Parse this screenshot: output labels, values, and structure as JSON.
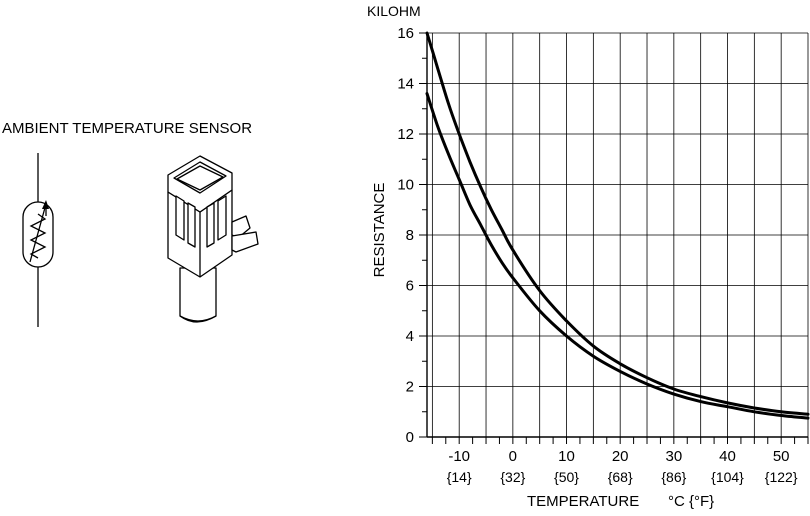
{
  "sensor": {
    "title": "AMBIENT TEMPERATURE SENSOR",
    "symbol_icon": "thermistor-symbol-icon",
    "part_icon": "sensor-part-icon"
  },
  "chart_data": {
    "type": "line",
    "y_unit": "KILOHM",
    "ylabel": "RESISTANCE",
    "xlabel": "TEMPERATURE",
    "x_unit": "°C {°F}",
    "xlim": [
      -16,
      55
    ],
    "ylim": [
      0,
      16
    ],
    "x_ticks": [
      {
        "value": -10,
        "label": "-10",
        "sub": "{14}"
      },
      {
        "value": 0,
        "label": "0",
        "sub": "{32}"
      },
      {
        "value": 10,
        "label": "10",
        "sub": "{50}"
      },
      {
        "value": 20,
        "label": "20",
        "sub": "{68}"
      },
      {
        "value": 30,
        "label": "30",
        "sub": "{86}"
      },
      {
        "value": 40,
        "label": "40",
        "sub": "{104}"
      },
      {
        "value": 50,
        "label": "50",
        "sub": "{122}"
      }
    ],
    "y_ticks": [
      0,
      2,
      4,
      6,
      8,
      10,
      12,
      14,
      16
    ],
    "grid": true,
    "series": [
      {
        "x": [
          -16,
          -14,
          -12,
          -10,
          -8,
          -6,
          -4,
          -2,
          0,
          5,
          10,
          15,
          20,
          25,
          30,
          35,
          40,
          45,
          50,
          55
        ],
        "y": [
          16.0,
          14.6,
          13.2,
          12.0,
          10.9,
          9.9,
          9.0,
          8.2,
          7.4,
          5.8,
          4.6,
          3.6,
          2.9,
          2.35,
          1.9,
          1.6,
          1.35,
          1.15,
          1.0,
          0.9
        ]
      },
      {
        "x": [
          -16,
          -14,
          -12,
          -10,
          -8,
          -6,
          -4,
          -2,
          0,
          5,
          10,
          15,
          20,
          25,
          30,
          35,
          40,
          45,
          50,
          55
        ],
        "y": [
          13.6,
          12.3,
          11.2,
          10.2,
          9.2,
          8.4,
          7.6,
          6.9,
          6.3,
          5.0,
          4.0,
          3.2,
          2.6,
          2.1,
          1.7,
          1.4,
          1.2,
          1.0,
          0.85,
          0.75
        ]
      }
    ]
  }
}
